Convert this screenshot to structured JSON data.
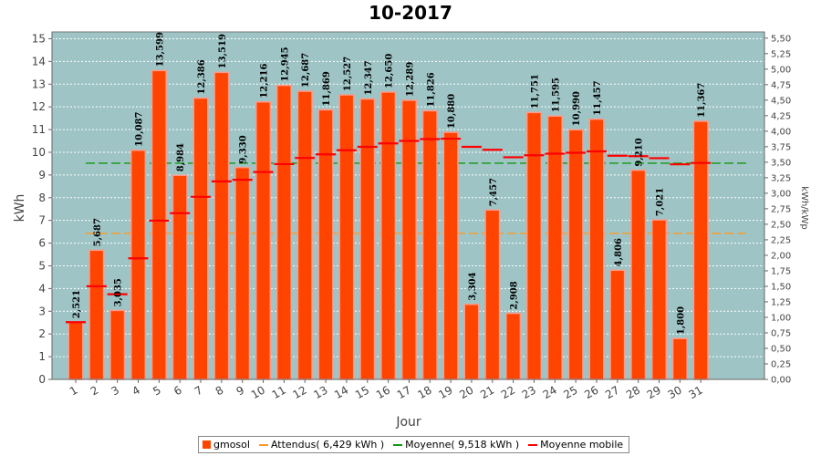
{
  "chart_data": {
    "type": "bar",
    "title": "10-2017",
    "xlabel": "Jour",
    "ylabel": "kWh",
    "y2label": "kWh/kWp",
    "ylim": [
      0,
      15.3
    ],
    "y2lim": [
      0,
      5.6
    ],
    "grid": true,
    "legend_placement": "bottom",
    "categories": [
      "1",
      "2",
      "3",
      "4",
      "5",
      "6",
      "7",
      "8",
      "9",
      "10",
      "11",
      "12",
      "13",
      "14",
      "15",
      "16",
      "17",
      "18",
      "19",
      "20",
      "21",
      "22",
      "23",
      "24",
      "25",
      "26",
      "27",
      "28",
      "29",
      "30",
      "31"
    ],
    "yticks": [
      "0",
      "1",
      "2",
      "3",
      "4",
      "5",
      "6",
      "7",
      "8",
      "9",
      "10",
      "11",
      "12",
      "13",
      "14",
      "15"
    ],
    "y2ticks": [
      "0,00",
      "0,25",
      "0,50",
      "0,75",
      "1,00",
      "1,25",
      "1,50",
      "1,75",
      "2,00",
      "2,25",
      "2,50",
      "2,75",
      "3,00",
      "3,25",
      "3,50",
      "3,75",
      "4,00",
      "4,25",
      "4,50",
      "4,75",
      "5,00",
      "5,25",
      "5,50"
    ],
    "series": [
      {
        "name": "gmosol",
        "kind": "bar",
        "values": [
          2.521,
          5.687,
          3.035,
          10.087,
          13.599,
          8.984,
          12.386,
          13.519,
          9.33,
          12.216,
          12.945,
          12.687,
          11.869,
          12.527,
          12.347,
          12.65,
          12.289,
          11.826,
          10.88,
          3.304,
          7.457,
          2.908,
          11.751,
          11.595,
          10.99,
          11.457,
          4.806,
          9.21,
          7.021,
          1.8,
          11.367
        ],
        "labels": [
          "2,521",
          "5,687",
          "3,035",
          "10,087",
          "13,599",
          "8,984",
          "12,386",
          "13,519",
          "9,330",
          "12,216",
          "12,945",
          "12,687",
          "11,869",
          "12,527",
          "12,347",
          "12,650",
          "12,289",
          "11,826",
          "10,880",
          "3,304",
          "7,457",
          "2,908",
          "11,751",
          "11,595",
          "10,990",
          "11,457",
          "4,806",
          "9,210",
          "7,021",
          "1,800",
          "11,367"
        ]
      },
      {
        "name": "Attendus( 6,429 kWh )",
        "kind": "hline",
        "value": 6.429
      },
      {
        "name": "Moyenne( 9,518 kWh )",
        "kind": "hline",
        "value": 9.518
      },
      {
        "name": "Moyenne mobile",
        "kind": "step",
        "values": [
          2.52,
          4.1,
          3.75,
          5.33,
          6.99,
          7.32,
          8.04,
          8.72,
          8.79,
          9.13,
          9.48,
          9.75,
          9.91,
          10.09,
          10.24,
          10.39,
          10.5,
          10.58,
          10.6,
          10.24,
          10.11,
          9.78,
          9.87,
          9.94,
          9.98,
          10.04,
          9.85,
          9.83,
          9.74,
          9.47,
          9.53
        ]
      }
    ],
    "colors": {
      "plot_bg": "#9ec4c5",
      "bar_fill": "#ff4400",
      "bar_edge": "#ff9988",
      "attendus": "#ff9922",
      "moyenne": "#119911",
      "mobile": "#ff0000",
      "grid": "#ffffff"
    }
  },
  "legend": {
    "items": [
      {
        "label": "gmosol",
        "type": "box",
        "color": "#ff4400"
      },
      {
        "label": "Attendus( 6,429 kWh )",
        "type": "line",
        "color": "#ff9922"
      },
      {
        "label": "Moyenne( 9,518 kWh )",
        "type": "line",
        "color": "#119911"
      },
      {
        "label": "Moyenne mobile",
        "type": "line",
        "color": "#ff0000"
      }
    ]
  }
}
